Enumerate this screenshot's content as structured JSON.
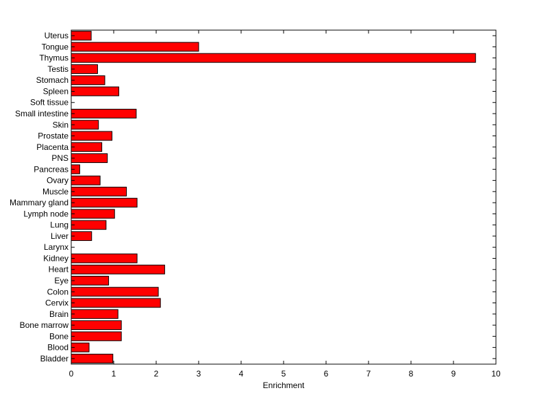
{
  "chart_data": {
    "type": "bar",
    "orientation": "horizontal",
    "title": "",
    "xlabel": "Enrichment",
    "ylabel": "",
    "xlim": [
      0,
      10
    ],
    "xticks": [
      0,
      1,
      2,
      3,
      4,
      5,
      6,
      7,
      8,
      9,
      10
    ],
    "grid": false,
    "bar_color": "#ff0000",
    "edge_color": "#000000",
    "categories": [
      "Uterus",
      "Tongue",
      "Thymus",
      "Testis",
      "Stomach",
      "Spleen",
      "Soft tissue",
      "Small intestine",
      "Skin",
      "Prostate",
      "Placenta",
      "PNS",
      "Pancreas",
      "Ovary",
      "Muscle",
      "Mammary gland",
      "Lymph node",
      "Lung",
      "Liver",
      "Larynx",
      "Kidney",
      "Heart",
      "Eye",
      "Colon",
      "Cervix",
      "Brain",
      "Bone marrow",
      "Bone",
      "Blood",
      "Bladder"
    ],
    "values": [
      0.47,
      3.0,
      9.52,
      0.62,
      0.79,
      1.12,
      0.0,
      1.53,
      0.64,
      0.96,
      0.72,
      0.85,
      0.2,
      0.68,
      1.3,
      1.55,
      1.02,
      0.82,
      0.48,
      0.0,
      1.55,
      2.2,
      0.88,
      2.05,
      2.1,
      1.1,
      1.18,
      1.18,
      0.42,
      0.98
    ]
  }
}
